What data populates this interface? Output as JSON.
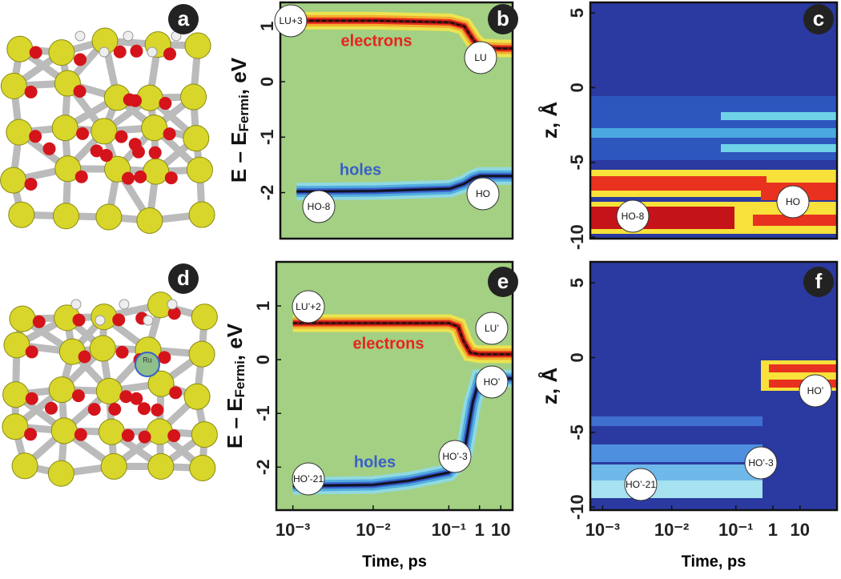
{
  "structures": [
    {
      "label": "a"
    },
    {
      "label": "d",
      "atom_label": "Ru"
    }
  ],
  "chart_data": [
    {
      "type": "line",
      "label": "b",
      "ylabel": {
        "main": "E – E",
        "sub": "Fermi",
        "unit": ", eV"
      },
      "xscale": "log",
      "xlim": [
        0.0006,
        40
      ],
      "ylim": [
        -2.83,
        1.43
      ],
      "yticks": [
        -2,
        -1,
        0,
        1
      ],
      "series": [
        {
          "name": "electrons",
          "color": "#e8231f",
          "linestyle": "dashed",
          "x": [
            0.001,
            0.01,
            0.1,
            0.3,
            0.6,
            1,
            10,
            40
          ],
          "values": [
            1.1,
            1.1,
            1.07,
            1.0,
            0.75,
            0.62,
            0.6,
            0.6
          ]
        },
        {
          "name": "holes",
          "color": "#3a5fc8",
          "linestyle": "solid",
          "x": [
            0.001,
            0.01,
            0.1,
            0.3,
            0.6,
            1,
            10,
            40
          ],
          "values": [
            -1.98,
            -1.97,
            -1.93,
            -1.84,
            -1.74,
            -1.7,
            -1.7,
            -1.7
          ]
        }
      ],
      "annotations": [
        "LU+3",
        "LU",
        "HO-8",
        "HO"
      ]
    },
    {
      "type": "line",
      "label": "e",
      "ylabel": {
        "main": "E – E",
        "sub": "Fermi",
        "unit": ", eV"
      },
      "xlabel": "Time, ps",
      "xscale": "log",
      "xlim": [
        0.0006,
        40
      ],
      "ylim": [
        -2.8,
        1.82
      ],
      "yticks": [
        -2,
        -1,
        0,
        1
      ],
      "xticks": [
        {
          "value": 0.001,
          "label": "10⁻³"
        },
        {
          "value": 0.01,
          "label": "10⁻²"
        },
        {
          "value": 0.1,
          "label": "10⁻¹"
        },
        1,
        10
      ],
      "series": [
        {
          "name": "electrons",
          "color": "#e8231f",
          "linestyle": "dashed",
          "x": [
            0.001,
            0.01,
            0.1,
            0.2,
            0.3,
            0.5,
            1,
            10,
            40
          ],
          "values": [
            0.68,
            0.68,
            0.68,
            0.62,
            0.35,
            0.13,
            0.1,
            0.1,
            0.1
          ]
        },
        {
          "name": "holes",
          "color": "#3a5fc8",
          "linestyle": "solid",
          "x": [
            0.001,
            0.01,
            0.03,
            0.1,
            0.3,
            0.6,
            1,
            10,
            40
          ],
          "values": [
            -2.35,
            -2.33,
            -2.25,
            -2.1,
            -1.8,
            -0.8,
            -0.35,
            -0.35,
            -0.35
          ]
        }
      ],
      "annotations": [
        "LU’+2",
        "LU’",
        "HO’",
        "HO’-3",
        "HO’-21"
      ]
    },
    {
      "type": "heatmap",
      "label": "c",
      "ylabel": "z, Å",
      "xscale": "log",
      "xlim": [
        0.0007,
        200
      ],
      "ylim": [
        -10.1,
        5.7
      ],
      "yticks": [
        -10,
        -5,
        0,
        5
      ],
      "annotations": [
        "HO-8",
        "HO"
      ]
    },
    {
      "type": "heatmap",
      "label": "f",
      "ylabel": "z, Å",
      "xlabel": "Time, ps",
      "xscale": "log",
      "xlim": [
        0.0007,
        200
      ],
      "ylim": [
        -10.2,
        6.4
      ],
      "yticks": [
        -10,
        -5,
        0,
        5
      ],
      "xticks": [
        {
          "value": 0.001,
          "label": "10⁻³"
        },
        {
          "value": 0.01,
          "label": "10⁻²"
        },
        {
          "value": 0.1,
          "label": "10⁻¹"
        },
        1,
        10
      ],
      "annotations": [
        "HO’-21",
        "HO’-3",
        "HO’"
      ]
    }
  ]
}
